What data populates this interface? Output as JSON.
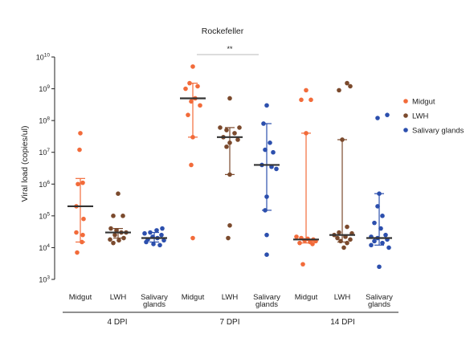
{
  "chart_data": {
    "type": "scatter",
    "title": "Rockefeller",
    "ylabel": "Viral load (copies/ul)",
    "yscale": "log",
    "ylim_exponents": [
      3,
      10
    ],
    "y_ticks": [
      {
        "base": "10",
        "exp": "3"
      },
      {
        "base": "10",
        "exp": "4"
      },
      {
        "base": "10",
        "exp": "5"
      },
      {
        "base": "10",
        "exp": "6"
      },
      {
        "base": "10",
        "exp": "7"
      },
      {
        "base": "10",
        "exp": "8"
      },
      {
        "base": "10",
        "exp": "9"
      },
      {
        "base": "10",
        "exp": "10"
      }
    ],
    "categories": [
      "Midgut",
      "LWH",
      "Salivary\nglands",
      "Midgut",
      "LWH",
      "Salivary\nglands",
      "Midgut",
      "LWH",
      "Salivary\nglands"
    ],
    "groups": [
      {
        "label": "4 DPI",
        "from": 0,
        "to": 2
      },
      {
        "label": "7 DPI",
        "from": 3,
        "to": 5
      },
      {
        "label": "14 DPI",
        "from": 6,
        "to": 8
      }
    ],
    "significance": {
      "label": "**",
      "from": 3,
      "to": 5
    },
    "legend": {
      "position": "right",
      "entries": [
        {
          "name": "Midgut",
          "color": "#f26b3a"
        },
        {
          "name": "LWH",
          "color": "#7b4a2d"
        },
        {
          "name": "Salivary glands",
          "color": "#2c4fad"
        }
      ]
    },
    "series_colors": [
      "#f26b3a",
      "#7b4a2d",
      "#2c4fad",
      "#f26b3a",
      "#7b4a2d",
      "#2c4fad",
      "#f26b3a",
      "#7b4a2d",
      "#2c4fad"
    ],
    "data": [
      {
        "median": 200000,
        "q1": 15000,
        "q3": 1500000,
        "points": [
          {
            "y": 40000000,
            "dx": 0
          },
          {
            "y": 12000000,
            "dx": -1
          },
          {
            "y": 1000000,
            "dx": -3
          },
          {
            "y": 1100000,
            "dx": 3
          },
          {
            "y": 200000,
            "dx": -5
          },
          {
            "y": 80000,
            "dx": 4
          },
          {
            "y": 30000,
            "dx": -5
          },
          {
            "y": 25000,
            "dx": 3
          },
          {
            "y": 15000,
            "dx": 2
          },
          {
            "y": 7000,
            "dx": -4
          }
        ]
      },
      {
        "median": 30000,
        "q1": 20000,
        "q3": 40000,
        "points": [
          {
            "y": 500000,
            "dx": 0
          },
          {
            "y": 100000,
            "dx": -6
          },
          {
            "y": 100000,
            "dx": 6
          },
          {
            "y": 40000,
            "dx": -9
          },
          {
            "y": 35000,
            "dx": -2
          },
          {
            "y": 30000,
            "dx": 10
          },
          {
            "y": 30000,
            "dx": 4
          },
          {
            "y": 25000,
            "dx": -4
          },
          {
            "y": 20000,
            "dx": 7
          },
          {
            "y": 18000,
            "dx": -10
          },
          {
            "y": 17000,
            "dx": 1
          },
          {
            "y": 14000,
            "dx": -6
          }
        ]
      },
      {
        "median": 20000,
        "q1": 15000,
        "q3": 30000,
        "points": [
          {
            "y": 40000,
            "dx": 10
          },
          {
            "y": 35000,
            "dx": 3
          },
          {
            "y": 30000,
            "dx": -5
          },
          {
            "y": 28000,
            "dx": -12
          },
          {
            "y": 25000,
            "dx": 9
          },
          {
            "y": 22000,
            "dx": -2
          },
          {
            "y": 20000,
            "dx": 4
          },
          {
            "y": 18000,
            "dx": -8
          },
          {
            "y": 17000,
            "dx": 12
          },
          {
            "y": 15000,
            "dx": -10
          },
          {
            "y": 13000,
            "dx": -1
          },
          {
            "y": 12000,
            "dx": 7
          }
        ]
      },
      {
        "median": 500000000,
        "q1": 30000000,
        "q3": 1500000000,
        "points": [
          {
            "y": 5000000000,
            "dx": 0
          },
          {
            "y": 1500000000,
            "dx": -4
          },
          {
            "y": 1200000000,
            "dx": 6
          },
          {
            "y": 1000000000,
            "dx": -9
          },
          {
            "y": 500000000,
            "dx": 3
          },
          {
            "y": 400000000,
            "dx": -2
          },
          {
            "y": 300000000,
            "dx": 9
          },
          {
            "y": 150000000,
            "dx": -6
          },
          {
            "y": 30000000,
            "dx": 0
          },
          {
            "y": 4000000,
            "dx": -2
          },
          {
            "y": 20000,
            "dx": 0
          }
        ]
      },
      {
        "median": 30000000,
        "q1": 2000000,
        "q3": 60000000,
        "points": [
          {
            "y": 500000000,
            "dx": 0
          },
          {
            "y": 60000000,
            "dx": -12
          },
          {
            "y": 60000000,
            "dx": 12
          },
          {
            "y": 50000000,
            "dx": -4
          },
          {
            "y": 40000000,
            "dx": 6
          },
          {
            "y": 30000000,
            "dx": -8
          },
          {
            "y": 25000000,
            "dx": 10
          },
          {
            "y": 20000000,
            "dx": 0
          },
          {
            "y": 15000000,
            "dx": -4
          },
          {
            "y": 2000000,
            "dx": 0
          },
          {
            "y": 50000,
            "dx": 0
          },
          {
            "y": 20000,
            "dx": -2
          }
        ]
      },
      {
        "median": 4000000,
        "q1": 150000,
        "q3": 80000000,
        "points": [
          {
            "y": 300000000,
            "dx": 0
          },
          {
            "y": 80000000,
            "dx": -4
          },
          {
            "y": 20000000,
            "dx": 4
          },
          {
            "y": 12000000,
            "dx": -2
          },
          {
            "y": 10000000,
            "dx": 8
          },
          {
            "y": 4000000,
            "dx": -6
          },
          {
            "y": 3500000,
            "dx": 6
          },
          {
            "y": 3000000,
            "dx": 12
          },
          {
            "y": 400000,
            "dx": 0
          },
          {
            "y": 150000,
            "dx": -2
          },
          {
            "y": 25000,
            "dx": 0
          },
          {
            "y": 6000,
            "dx": 0
          }
        ]
      },
      {
        "median": 18000,
        "q1": 14000,
        "q3": 40000000,
        "points": [
          {
            "y": 900000000,
            "dx": 0
          },
          {
            "y": 450000000,
            "dx": -6
          },
          {
            "y": 450000000,
            "dx": 6
          },
          {
            "y": 40000000,
            "dx": 0
          },
          {
            "y": 22000,
            "dx": -12
          },
          {
            "y": 20000,
            "dx": -6
          },
          {
            "y": 19000,
            "dx": 2
          },
          {
            "y": 18000,
            "dx": 9
          },
          {
            "y": 17000,
            "dx": -2
          },
          {
            "y": 16000,
            "dx": 12
          },
          {
            "y": 15000,
            "dx": 5
          },
          {
            "y": 14000,
            "dx": -8
          },
          {
            "y": 13000,
            "dx": 8
          },
          {
            "y": 3000,
            "dx": -4
          }
        ]
      },
      {
        "median": 25000,
        "q1": 15000,
        "q3": 25000000,
        "points": [
          {
            "y": 1500000000,
            "dx": 6
          },
          {
            "y": 1200000000,
            "dx": 10
          },
          {
            "y": 900000000,
            "dx": -4
          },
          {
            "y": 25000000,
            "dx": 0
          },
          {
            "y": 45000,
            "dx": 6
          },
          {
            "y": 30000,
            "dx": -4
          },
          {
            "y": 28000,
            "dx": 12
          },
          {
            "y": 25000,
            "dx": -10
          },
          {
            "y": 22000,
            "dx": 4
          },
          {
            "y": 20000,
            "dx": -6
          },
          {
            "y": 18000,
            "dx": 10
          },
          {
            "y": 16000,
            "dx": -2
          },
          {
            "y": 14000,
            "dx": 6
          },
          {
            "y": 10000,
            "dx": 2
          }
        ]
      },
      {
        "median": 20000,
        "q1": 12000,
        "q3": 500000,
        "points": [
          {
            "y": 150000000,
            "dx": 10
          },
          {
            "y": 120000000,
            "dx": -2
          },
          {
            "y": 500000,
            "dx": 0
          },
          {
            "y": 200000,
            "dx": -2
          },
          {
            "y": 100000,
            "dx": 4
          },
          {
            "y": 60000,
            "dx": -6
          },
          {
            "y": 40000,
            "dx": 2
          },
          {
            "y": 25000,
            "dx": 8
          },
          {
            "y": 22000,
            "dx": -10
          },
          {
            "y": 20000,
            "dx": -2
          },
          {
            "y": 18000,
            "dx": 10
          },
          {
            "y": 16000,
            "dx": -6
          },
          {
            "y": 14000,
            "dx": 4
          },
          {
            "y": 12000,
            "dx": -10
          },
          {
            "y": 10000,
            "dx": 12
          },
          {
            "y": 2500,
            "dx": 0
          }
        ]
      }
    ]
  }
}
